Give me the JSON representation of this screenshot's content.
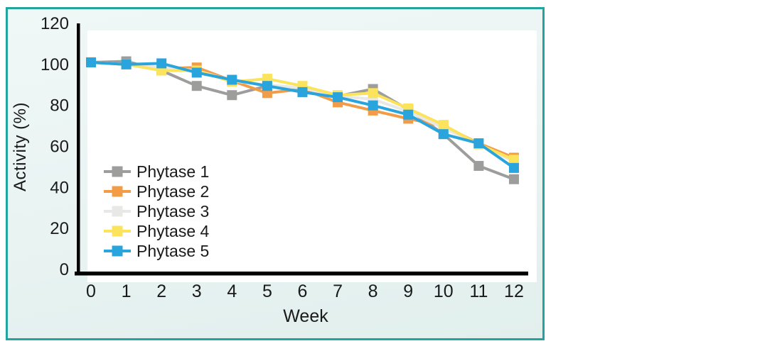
{
  "figure": {
    "panel_border_color": "#23a59d",
    "axis_color": "#000000",
    "text_color": "#1a1a1a",
    "panel_bg_top": "#f0f8f7",
    "panel_bg_bottom": "#e1efed",
    "plot_bg": "#ffffff"
  },
  "chart_data": {
    "type": "line",
    "title": "",
    "xlabel": "Week",
    "ylabel": "Activity (%)",
    "x": [
      0,
      1,
      2,
      3,
      4,
      5,
      6,
      7,
      8,
      9,
      10,
      11,
      12
    ],
    "xticklabels": [
      "0",
      "1",
      "2",
      "3",
      "4",
      "5",
      "6",
      "7",
      "8",
      "9",
      "10",
      "11",
      "12"
    ],
    "xlim": [
      0,
      12
    ],
    "ylim": [
      0,
      120
    ],
    "yticks": [
      0,
      20,
      40,
      60,
      80,
      100,
      120
    ],
    "yticklabels": [
      "0",
      "20",
      "40",
      "60",
      "80",
      "100",
      "120"
    ],
    "grid": false,
    "marker": "square",
    "legend_position": "inside-left",
    "series": [
      {
        "name": "Phytase 1",
        "color": "#9d9d9c",
        "values": [
          101,
          101.5,
          97,
          89.5,
          85,
          89.5,
          86.5,
          84.5,
          88,
          78,
          66,
          50.5,
          44
        ]
      },
      {
        "name": "Phytase 2",
        "color": "#f39c47",
        "values": [
          101,
          100,
          98,
          98.5,
          92,
          86,
          88,
          81.5,
          77.5,
          73.5,
          70,
          61.5,
          54.5
        ]
      },
      {
        "name": "Phytase 3",
        "color": "#e8e8e6",
        "values": [
          101,
          100,
          98.5,
          97,
          92,
          90,
          88.5,
          84.5,
          83,
          77,
          69,
          61,
          52.5
        ]
      },
      {
        "name": "Phytase 4",
        "color": "#fbe35b",
        "values": [
          101,
          100,
          97,
          97,
          91.5,
          93,
          89.5,
          85,
          86,
          78.5,
          70.5,
          61,
          53.5
        ]
      },
      {
        "name": "Phytase 5",
        "color": "#29a4dc",
        "values": [
          101,
          100,
          100.5,
          96,
          92.5,
          89.5,
          86.5,
          84,
          80,
          75.5,
          66,
          61.5,
          49.5
        ]
      }
    ]
  }
}
